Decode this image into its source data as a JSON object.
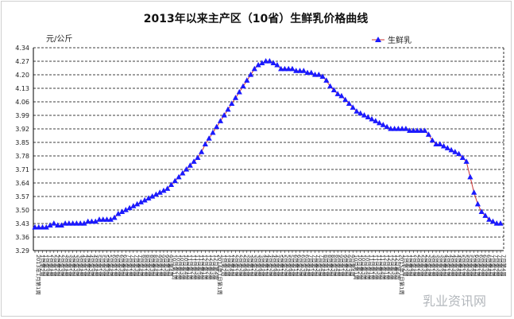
{
  "chart_data": {
    "type": "line",
    "title": "2013年以来主产区（10省）生鲜乳价格曲线",
    "ylabel": "元/公斤",
    "ylim": [
      3.29,
      4.34
    ],
    "yticks": [
      3.29,
      3.36,
      3.43,
      3.5,
      3.57,
      3.64,
      3.71,
      3.78,
      3.85,
      3.92,
      3.99,
      4.06,
      4.13,
      4.2,
      4.27,
      4.34
    ],
    "grid": true,
    "legend_position": "top-right",
    "year_labels": [
      "2013年",
      "2014年",
      "2015年"
    ],
    "x_week_labels": [
      "1月第1周",
      "1月第2周",
      "1月第3周",
      "1月第4周",
      "2月第1周",
      "2月第2周",
      "2月第3周",
      "2月第4周",
      "3月第1周",
      "3月第2周",
      "3月第3周",
      "3月第4周",
      "4月第1周",
      "4月第2周",
      "4月第3周",
      "4月第4周",
      "5月第1周",
      "5月第2周",
      "5月第3周",
      "5月第4周",
      "6月第1周",
      "6月第2周",
      "6月第3周",
      "6月第4周",
      "7月第1周",
      "7月第2周",
      "7月第3周",
      "7月第4周",
      "8月第1周",
      "8月第2周",
      "8月第3周",
      "8月第4周",
      "9月第1周",
      "9月第2周",
      "9月第3周",
      "9月第4周",
      "10月第1周",
      "10月第2周",
      "10月第3周",
      "10月第4周",
      "11月第1周",
      "11月第2周",
      "11月第3周",
      "11月第4周",
      "12月第1周",
      "12月第2周",
      "12月第3周",
      "12月第4周"
    ],
    "series": [
      {
        "name": "生鲜乳",
        "color": "#1a1aff",
        "line_color": "#cc3333",
        "marker": "triangle",
        "values": [
          3.41,
          3.41,
          3.41,
          3.41,
          3.42,
          3.43,
          3.42,
          3.42,
          3.43,
          3.43,
          3.43,
          3.43,
          3.43,
          3.43,
          3.44,
          3.44,
          3.44,
          3.45,
          3.45,
          3.45,
          3.45,
          3.46,
          3.48,
          3.49,
          3.5,
          3.51,
          3.52,
          3.53,
          3.54,
          3.55,
          3.56,
          3.57,
          3.58,
          3.59,
          3.6,
          3.61,
          3.63,
          3.65,
          3.67,
          3.69,
          3.71,
          3.73,
          3.75,
          3.77,
          3.8,
          3.84,
          3.87,
          3.9,
          3.93,
          3.96,
          3.99,
          4.02,
          4.05,
          4.08,
          4.11,
          4.14,
          4.17,
          4.2,
          4.23,
          4.25,
          4.26,
          4.27,
          4.27,
          4.26,
          4.25,
          4.23,
          4.23,
          4.23,
          4.23,
          4.22,
          4.22,
          4.22,
          4.21,
          4.21,
          4.2,
          4.2,
          4.19,
          4.17,
          4.14,
          4.12,
          4.1,
          4.09,
          4.07,
          4.05,
          4.03,
          4.01,
          4.0,
          3.99,
          3.98,
          3.97,
          3.96,
          3.95,
          3.94,
          3.93,
          3.92,
          3.92,
          3.92,
          3.92,
          3.92,
          3.91,
          3.91,
          3.91,
          3.91,
          3.91,
          3.89,
          3.86,
          3.84,
          3.84,
          3.83,
          3.82,
          3.81,
          3.8,
          3.79,
          3.77,
          3.75,
          3.67,
          3.59,
          3.53,
          3.49,
          3.47,
          3.45,
          3.44,
          3.43,
          3.43
        ]
      }
    ]
  },
  "watermark": "乳业资讯网"
}
